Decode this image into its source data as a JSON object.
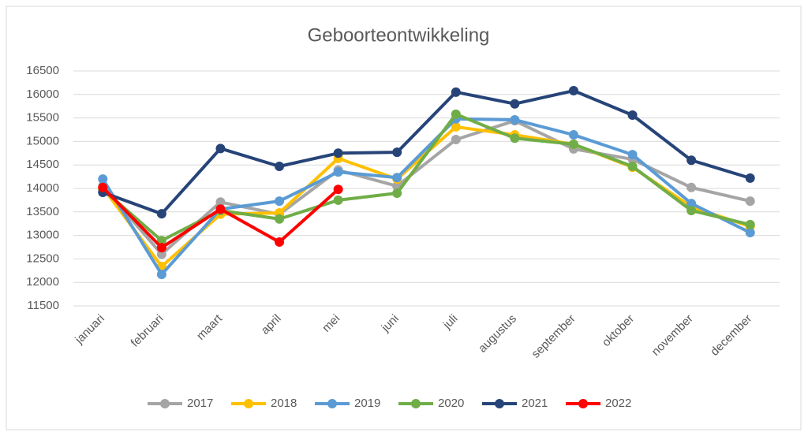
{
  "chart_data": {
    "type": "line",
    "title": "Geboorteontwikkeling",
    "categories": [
      "januari",
      "februari",
      "maart",
      "april",
      "mei",
      "juni",
      "juli",
      "augustus",
      "september",
      "oktober",
      "november",
      "december"
    ],
    "series": [
      {
        "name": "2017",
        "color": "#a5a5a5",
        "values": [
          14050,
          12600,
          13710,
          13450,
          14390,
          14050,
          15040,
          15440,
          14840,
          14620,
          14020,
          13730
        ]
      },
      {
        "name": "2018",
        "color": "#ffc000",
        "values": [
          14020,
          12340,
          13450,
          13480,
          14640,
          14200,
          15310,
          15140,
          14940,
          14450,
          13610,
          13190
        ]
      },
      {
        "name": "2019",
        "color": "#5b9bd5",
        "values": [
          14200,
          12170,
          13560,
          13730,
          14350,
          14230,
          15480,
          15460,
          15140,
          14720,
          13680,
          13060
        ]
      },
      {
        "name": "2020",
        "color": "#70ad47",
        "values": [
          13980,
          12890,
          13530,
          13350,
          13750,
          13900,
          15580,
          15070,
          14940,
          14470,
          13530,
          13230
        ]
      },
      {
        "name": "2021",
        "color": "#264478",
        "values": [
          13916,
          13460,
          14850,
          14470,
          14750,
          14770,
          16050,
          15800,
          16080,
          15560,
          14600,
          14220
        ]
      },
      {
        "name": "2022",
        "color": "#ff0000",
        "values": [
          14020,
          12740,
          13560,
          12860,
          13980,
          null,
          null,
          null,
          null,
          null,
          null,
          null
        ]
      }
    ],
    "ylim": [
      11500,
      16500
    ],
    "yticks": [
      11500,
      12000,
      12500,
      13000,
      13500,
      14000,
      14500,
      15000,
      15500,
      16000,
      16500
    ],
    "grid": true,
    "legend": "bottom"
  }
}
